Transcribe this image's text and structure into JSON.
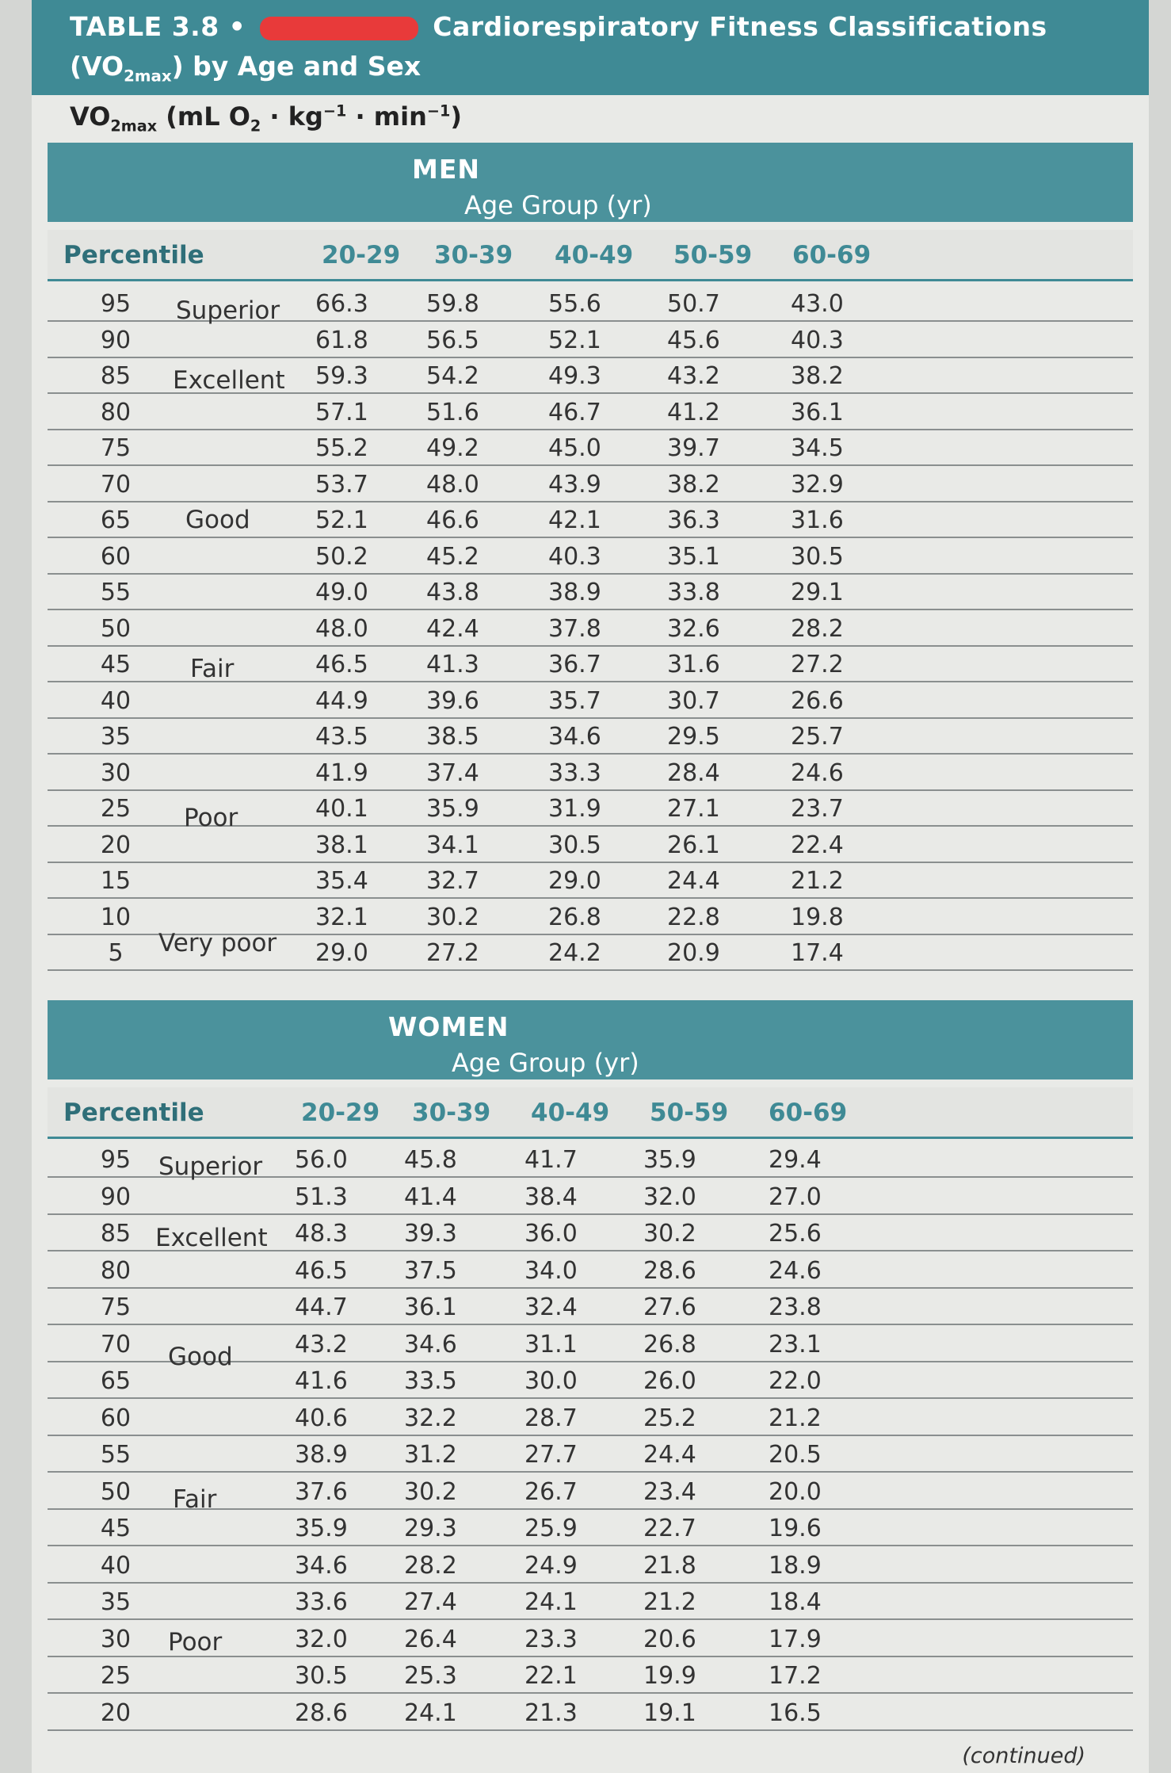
{
  "table": {
    "title_prefix": "TABLE 3.8",
    "title_bullet": "•",
    "title_suffix": "Cardiorespiratory Fitness Classifications",
    "title_line2_pre": "(VO",
    "title_line2_sub": "2max",
    "title_line2_post": ") by Age and Sex",
    "unit_pre": "VO",
    "unit_sub": "2max",
    "unit_post": " (mL O",
    "unit_o2sub": "2",
    "unit_kg": " · kg",
    "unit_kg_sup": "−1",
    "unit_min": " · min",
    "unit_min_sup": "−1",
    "unit_close": ")",
    "continued": "(continued)"
  },
  "headers": {
    "percentile": "Percentile",
    "age_group": "Age Group (yr)",
    "ages": [
      "20-29",
      "30-39",
      "40-49",
      "50-59",
      "60-69"
    ]
  },
  "men": {
    "label": "MEN",
    "classifications": [
      "Superior",
      "Excellent",
      "Good",
      "Fair",
      "Poor",
      "Very poor"
    ],
    "rows": [
      {
        "p": "95",
        "v": [
          "66.3",
          "59.8",
          "55.6",
          "50.7",
          "43.0"
        ]
      },
      {
        "p": "90",
        "v": [
          "61.8",
          "56.5",
          "52.1",
          "45.6",
          "40.3"
        ]
      },
      {
        "p": "85",
        "v": [
          "59.3",
          "54.2",
          "49.3",
          "43.2",
          "38.2"
        ]
      },
      {
        "p": "80",
        "v": [
          "57.1",
          "51.6",
          "46.7",
          "41.2",
          "36.1"
        ]
      },
      {
        "p": "75",
        "v": [
          "55.2",
          "49.2",
          "45.0",
          "39.7",
          "34.5"
        ]
      },
      {
        "p": "70",
        "v": [
          "53.7",
          "48.0",
          "43.9",
          "38.2",
          "32.9"
        ]
      },
      {
        "p": "65",
        "v": [
          "52.1",
          "46.6",
          "42.1",
          "36.3",
          "31.6"
        ]
      },
      {
        "p": "60",
        "v": [
          "50.2",
          "45.2",
          "40.3",
          "35.1",
          "30.5"
        ]
      },
      {
        "p": "55",
        "v": [
          "49.0",
          "43.8",
          "38.9",
          "33.8",
          "29.1"
        ]
      },
      {
        "p": "50",
        "v": [
          "48.0",
          "42.4",
          "37.8",
          "32.6",
          "28.2"
        ]
      },
      {
        "p": "45",
        "v": [
          "46.5",
          "41.3",
          "36.7",
          "31.6",
          "27.2"
        ]
      },
      {
        "p": "40",
        "v": [
          "44.9",
          "39.6",
          "35.7",
          "30.7",
          "26.6"
        ]
      },
      {
        "p": "35",
        "v": [
          "43.5",
          "38.5",
          "34.6",
          "29.5",
          "25.7"
        ]
      },
      {
        "p": "30",
        "v": [
          "41.9",
          "37.4",
          "33.3",
          "28.4",
          "24.6"
        ]
      },
      {
        "p": "25",
        "v": [
          "40.1",
          "35.9",
          "31.9",
          "27.1",
          "23.7"
        ]
      },
      {
        "p": "20",
        "v": [
          "38.1",
          "34.1",
          "30.5",
          "26.1",
          "22.4"
        ]
      },
      {
        "p": "15",
        "v": [
          "35.4",
          "32.7",
          "29.0",
          "24.4",
          "21.2"
        ]
      },
      {
        "p": "10",
        "v": [
          "32.1",
          "30.2",
          "26.8",
          "22.8",
          "19.8"
        ]
      },
      {
        "p": "5",
        "v": [
          "29.0",
          "27.2",
          "24.2",
          "20.9",
          "17.4"
        ]
      }
    ]
  },
  "women": {
    "label": "WOMEN",
    "classifications": [
      "Superior",
      "Excellent",
      "Good",
      "Fair",
      "Poor"
    ],
    "rows": [
      {
        "p": "95",
        "v": [
          "56.0",
          "45.8",
          "41.7",
          "35.9",
          "29.4"
        ]
      },
      {
        "p": "90",
        "v": [
          "51.3",
          "41.4",
          "38.4",
          "32.0",
          "27.0"
        ]
      },
      {
        "p": "85",
        "v": [
          "48.3",
          "39.3",
          "36.0",
          "30.2",
          "25.6"
        ]
      },
      {
        "p": "80",
        "v": [
          "46.5",
          "37.5",
          "34.0",
          "28.6",
          "24.6"
        ]
      },
      {
        "p": "75",
        "v": [
          "44.7",
          "36.1",
          "32.4",
          "27.6",
          "23.8"
        ]
      },
      {
        "p": "70",
        "v": [
          "43.2",
          "34.6",
          "31.1",
          "26.8",
          "23.1"
        ]
      },
      {
        "p": "65",
        "v": [
          "41.6",
          "33.5",
          "30.0",
          "26.0",
          "22.0"
        ]
      },
      {
        "p": "60",
        "v": [
          "40.6",
          "32.2",
          "28.7",
          "25.2",
          "21.2"
        ]
      },
      {
        "p": "55",
        "v": [
          "38.9",
          "31.2",
          "27.7",
          "24.4",
          "20.5"
        ]
      },
      {
        "p": "50",
        "v": [
          "37.6",
          "30.2",
          "26.7",
          "23.4",
          "20.0"
        ]
      },
      {
        "p": "45",
        "v": [
          "35.9",
          "29.3",
          "25.9",
          "22.7",
          "19.6"
        ]
      },
      {
        "p": "40",
        "v": [
          "34.6",
          "28.2",
          "24.9",
          "21.8",
          "18.9"
        ]
      },
      {
        "p": "35",
        "v": [
          "33.6",
          "27.4",
          "24.1",
          "21.2",
          "18.4"
        ]
      },
      {
        "p": "30",
        "v": [
          "32.0",
          "26.4",
          "23.3",
          "20.6",
          "17.9"
        ]
      },
      {
        "p": "25",
        "v": [
          "30.5",
          "25.3",
          "22.1",
          "19.9",
          "17.2"
        ]
      },
      {
        "p": "20",
        "v": [
          "28.6",
          "24.1",
          "21.3",
          "19.1",
          "16.5"
        ]
      }
    ]
  }
}
